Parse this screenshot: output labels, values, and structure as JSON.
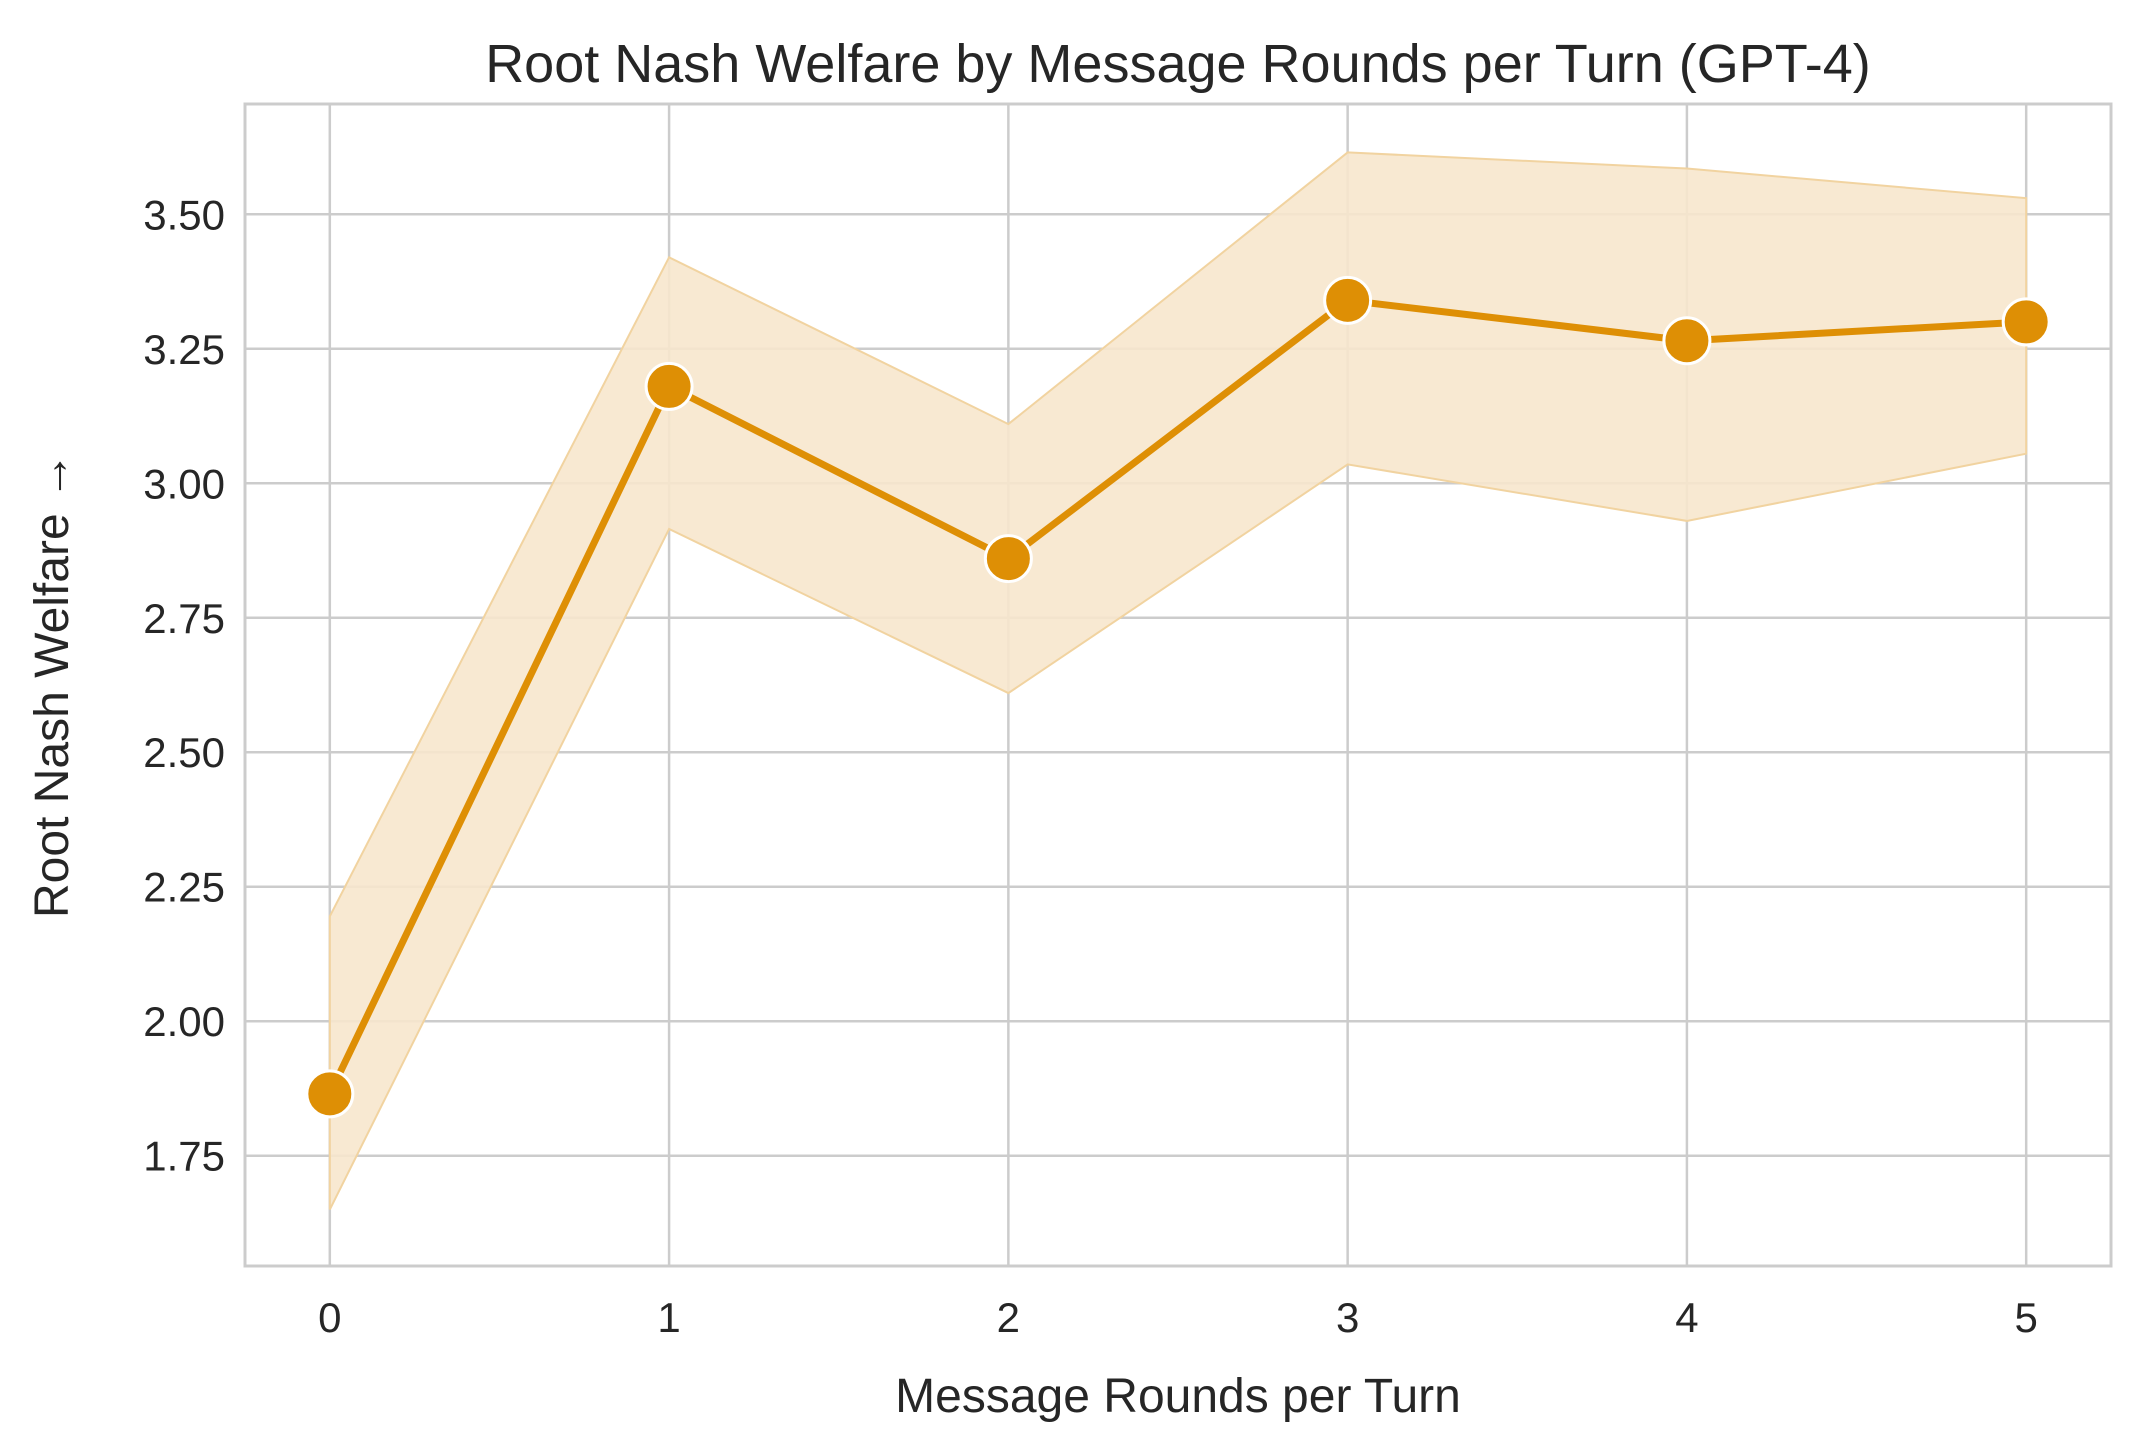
{
  "chart_data": {
    "type": "line",
    "title": "Root Nash Welfare by Message Rounds per Turn (GPT-4)",
    "xlabel": "Message Rounds per Turn",
    "ylabel": "Root Nash Welfare →",
    "x": [
      0,
      1,
      2,
      3,
      4,
      5
    ],
    "x_tick_labels": [
      "0",
      "1",
      "2",
      "3",
      "4",
      "5"
    ],
    "y_ticks": [
      1.75,
      2.0,
      2.25,
      2.5,
      2.75,
      3.0,
      3.25,
      3.5
    ],
    "y_tick_labels": [
      "1.75",
      "2.00",
      "2.25",
      "2.50",
      "2.75",
      "3.00",
      "3.25",
      "3.50"
    ],
    "xlim": [
      -0.25,
      5.25
    ],
    "ylim": [
      1.545,
      3.705
    ],
    "grid": true,
    "series": [
      {
        "values": [
          1.865,
          3.18,
          2.86,
          3.34,
          3.265,
          3.3
        ],
        "ci_lower": [
          1.65,
          2.915,
          2.61,
          3.035,
          2.93,
          3.055
        ],
        "ci_upper": [
          2.195,
          3.42,
          3.11,
          3.615,
          3.585,
          3.53
        ],
        "color": "#de8f05",
        "band_color": "#f7e7cd"
      }
    ]
  }
}
